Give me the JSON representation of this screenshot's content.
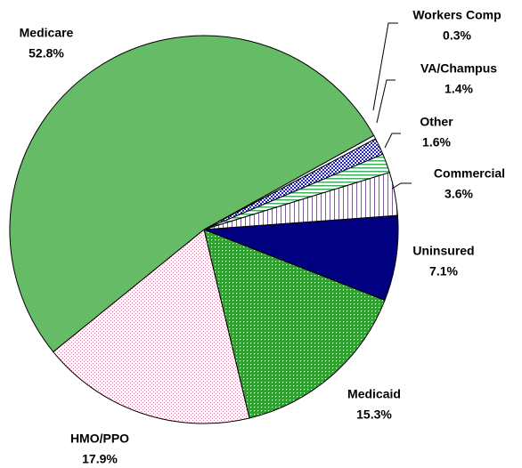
{
  "chart_data": {
    "type": "pie",
    "categories": [
      "Workers Comp",
      "VA/Champus",
      "Other",
      "Commercial",
      "Uninsured",
      "Medicaid",
      "HMO/PPO",
      "Medicare"
    ],
    "values": [
      0.3,
      1.4,
      1.6,
      3.6,
      7.1,
      15.3,
      17.9,
      52.8
    ],
    "value_labels": [
      "0.3%",
      "1.4%",
      "1.6%",
      "3.6%",
      "7.1%",
      "15.3%",
      "17.9%",
      "52.8%"
    ],
    "colors": [
      "#ffffff",
      "#2020c0",
      "#40b060",
      "#8060a0",
      "#000080",
      "#30a030",
      "#d080a0",
      "#66bb66"
    ]
  }
}
